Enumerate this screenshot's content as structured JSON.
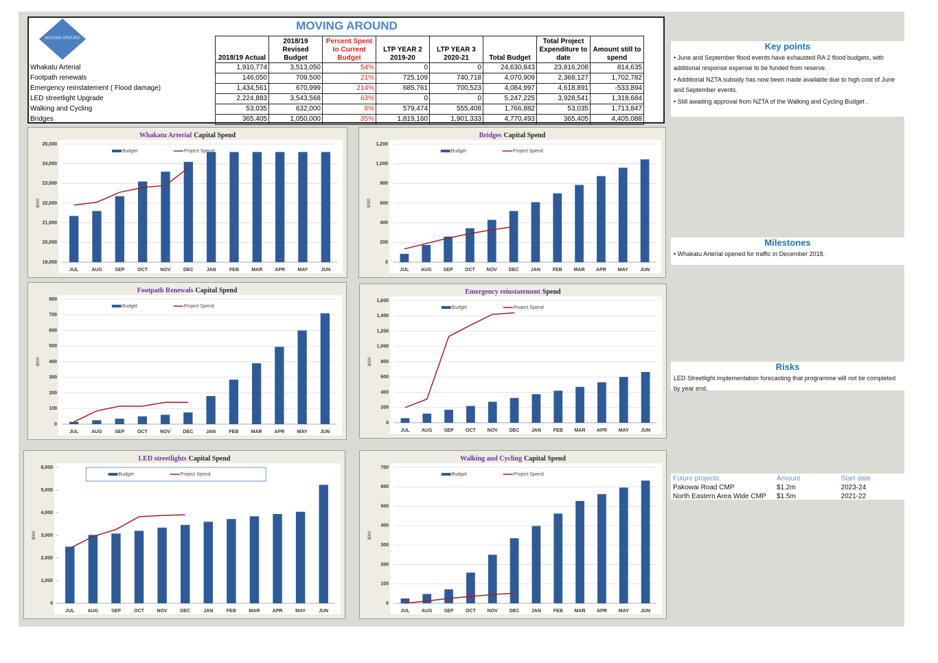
{
  "header": {
    "title": "MOVING AROUND",
    "logo_text": "MOVING AROUND"
  },
  "table": {
    "columns": [
      [
        "2018/19 Actual"
      ],
      [
        "2018/19",
        "Revised",
        "Budget"
      ],
      [
        "Percent Spent",
        "to Current",
        "Budget"
      ],
      [
        "LTP YEAR 2",
        "2019-20"
      ],
      [
        "LTP YEAR 3",
        "2020-21"
      ],
      [
        "Total Budget"
      ],
      [
        "Total Project",
        "Expenditure to",
        "date"
      ],
      [
        "Amount still to",
        "spend"
      ]
    ],
    "rows": [
      [
        "Whakatu Arterial",
        "1,910,774",
        "3,513,050",
        "54%",
        "0",
        "0",
        "24,630,843",
        "23,816,208",
        "814,635"
      ],
      [
        "Footpath renewals",
        "146,050",
        "709,500",
        "21%",
        "725,109",
        "740,718",
        "4,070,909",
        "2,368,127",
        "1,702,782"
      ],
      [
        "Emergency reinstatement ( Flood damage)",
        "1,434,561",
        "670,999",
        "214%",
        "685,761",
        "700,523",
        "4,084,997",
        "4,618,891",
        "-533,894"
      ],
      [
        "LED streetlight Upgrade",
        "2,224,883",
        "3,543,568",
        "63%",
        "0",
        "0",
        "5,247,225",
        "3,928,541",
        "1,318,684"
      ],
      [
        "Walking and Cycling",
        "53,035",
        "632,000",
        "8%",
        "579,474",
        "555,408",
        "1,766,882",
        "53,035",
        "1,713,847"
      ],
      [
        "Bridges",
        "365,405",
        "1,050,000",
        "35%",
        "1,819,160",
        "1,901,333",
        "4,770,493",
        "365,405",
        "4,405,088"
      ]
    ]
  },
  "key_points": {
    "title": "Key points",
    "items": [
      "• June and September flood events have exhausted RA 2 flood budgets, with additional response expense to be funded from reserve.",
      "• Additional NZTA subsidy has now been made available due to high cost of June and September events.",
      "• Still awaiting approval  from NZTA of the Walking and Cycling Budget ."
    ]
  },
  "milestones": {
    "title": "Milestones",
    "items": [
      "• Whakatu Arterial opened for traffic in December 2018."
    ]
  },
  "risks": {
    "title": "Risks",
    "items": [
      "LED Streetlight implementation forecasting that programme will not be completed by year end."
    ]
  },
  "future_projects": {
    "columns": [
      "Future projects:",
      "Amount",
      "Start date"
    ],
    "rows": [
      [
        "Pakowai Road CMP",
        "$1.2m",
        "2023-24"
      ],
      [
        "North Eastern Area Wide CMP",
        "$1.5m",
        "2021-22"
      ]
    ]
  },
  "chart_data": [
    {
      "type": "bar",
      "title_highlight": "Whakatu Arterial",
      "title": "Capital Spend",
      "ylabel": "$000",
      "categories": [
        "JUL",
        "AUG",
        "SEP",
        "OCT",
        "NOV",
        "DEC",
        "JAN",
        "FEB",
        "MAR",
        "APR",
        "MAY",
        "JUN"
      ],
      "series": [
        {
          "name": "Budget",
          "type": "bar",
          "color": "#2e5b97",
          "values": [
            21350,
            21600,
            22350,
            23100,
            23600,
            24100,
            24600,
            24600,
            24600,
            24600,
            24600,
            24600
          ]
        },
        {
          "name": "Project Spend",
          "type": "line",
          "color": "#a01c2c",
          "values": [
            21900,
            22050,
            22550,
            22800,
            22900,
            23800,
            null,
            null,
            null,
            null,
            null,
            null
          ]
        }
      ],
      "ylim": [
        19000,
        25000
      ],
      "yticks": [
        {
          "value": 19000,
          "label": "19,000"
        },
        {
          "value": 20000,
          "label": "20,000"
        },
        {
          "value": 21000,
          "label": "21,000"
        },
        {
          "value": 22000,
          "label": "22,000"
        },
        {
          "value": 23000,
          "label": "23,000"
        },
        {
          "value": 24000,
          "label": "24,000"
        },
        {
          "value": 25000,
          "label": "25,000"
        }
      ],
      "grid": true
    },
    {
      "type": "bar",
      "title_highlight": "Bridges",
      "title": "Capital Spend",
      "ylabel": "$000",
      "categories": [
        "JUL",
        "AUG",
        "SEP",
        "OCT",
        "NOV",
        "DEC",
        "JAN",
        "FEB",
        "MAR",
        "APR",
        "MAY",
        "JUN"
      ],
      "series": [
        {
          "name": "Budget",
          "type": "bar",
          "color": "#2e5b97",
          "values": [
            85,
            175,
            260,
            345,
            430,
            520,
            610,
            700,
            785,
            875,
            960,
            1045
          ]
        },
        {
          "name": "Project Spend",
          "type": "line",
          "color": "#a01c2c",
          "values": [
            135,
            190,
            245,
            290,
            330,
            360,
            null,
            null,
            null,
            null,
            null,
            null
          ]
        }
      ],
      "ylim": [
        0,
        1200
      ],
      "yticks": [
        0,
        200,
        400,
        600,
        800,
        {
          "value": 1000,
          "label": "1,000"
        },
        {
          "value": 1200,
          "label": "1,200"
        }
      ],
      "grid": true
    },
    {
      "type": "bar",
      "title_highlight": "Footpath Renewals",
      "title": "Capital Spend",
      "ylabel": "$000",
      "categories": [
        "JUL",
        "AUG",
        "SEP",
        "OCT",
        "NOV",
        "DEC",
        "JAN",
        "FEB",
        "MAR",
        "APR",
        "MAY",
        "JUN"
      ],
      "series": [
        {
          "name": "Budget",
          "type": "bar",
          "color": "#2e5b97",
          "values": [
            15,
            25,
            35,
            50,
            60,
            75,
            180,
            285,
            390,
            495,
            600,
            710
          ]
        },
        {
          "name": "Project Spend",
          "type": "line",
          "color": "#a01c2c",
          "values": [
            15,
            85,
            115,
            115,
            140,
            140,
            null,
            null,
            null,
            null,
            null,
            null
          ]
        }
      ],
      "ylim": [
        0,
        800
      ],
      "yticks": [
        0,
        100,
        200,
        300,
        400,
        500,
        600,
        700,
        800
      ],
      "grid": true
    },
    {
      "type": "bar",
      "title_highlight": "Emergency reinstatement",
      "title": "Spend",
      "ylabel": "$000",
      "categories": [
        "JUL",
        "AUG",
        "SEP",
        "OCT",
        "NOV",
        "DEC",
        "JAN",
        "FEB",
        "MAR",
        "APR",
        "MAY",
        "JUN"
      ],
      "series": [
        {
          "name": "Budget",
          "type": "bar",
          "color": "#2e5b97",
          "values": [
            60,
            120,
            170,
            220,
            275,
            325,
            375,
            420,
            470,
            530,
            600,
            665
          ]
        },
        {
          "name": "Project Spend",
          "type": "line",
          "color": "#a01c2c",
          "values": [
            200,
            310,
            1130,
            1280,
            1420,
            1440,
            null,
            null,
            null,
            null,
            null,
            null
          ]
        }
      ],
      "ylim": [
        0,
        1600
      ],
      "yticks": [
        0,
        200,
        400,
        600,
        800,
        {
          "value": 1000,
          "label": "1,000"
        },
        {
          "value": 1200,
          "label": "1,200"
        },
        {
          "value": 1400,
          "label": "1,400"
        },
        {
          "value": 1600,
          "label": "1,600"
        }
      ],
      "grid": true
    },
    {
      "type": "bar",
      "title_highlight": "LED streetlights",
      "title": "Capital Spend",
      "ylabel": "$000",
      "categories": [
        "JUL",
        "AUG",
        "SEP",
        "OCT",
        "NOV",
        "DEC",
        "JAN",
        "FEB",
        "MAR",
        "APR",
        "MAY",
        "JUN"
      ],
      "series": [
        {
          "name": "Budget",
          "type": "bar",
          "color": "#2e5b97",
          "values": [
            2500,
            3020,
            3080,
            3200,
            3340,
            3460,
            3600,
            3720,
            3840,
            3940,
            4040,
            5230
          ]
        },
        {
          "name": "Project Spend",
          "type": "line",
          "color": "#a01c2c",
          "values": [
            2430,
            2950,
            3260,
            3820,
            3880,
            3910,
            null,
            null,
            null,
            null,
            null,
            null
          ]
        }
      ],
      "ylim": [
        0,
        6000
      ],
      "yticks": [
        0,
        {
          "value": 1000,
          "label": "1,000"
        },
        {
          "value": 2000,
          "label": "2,000"
        },
        {
          "value": 3000,
          "label": "3,000"
        },
        {
          "value": 4000,
          "label": "4,000"
        },
        {
          "value": 5000,
          "label": "5,000"
        },
        {
          "value": 6000,
          "label": "6,000"
        }
      ],
      "grid": false
    },
    {
      "type": "bar",
      "title_highlight": "Walking and Cycling",
      "title": "Capital Spend",
      "ylabel": "$000",
      "categories": [
        "JUL",
        "AUG",
        "SEP",
        "OCT",
        "NOV",
        "DEC",
        "JAN",
        "FEB",
        "MAR",
        "APR",
        "MAY",
        "JUN"
      ],
      "series": [
        {
          "name": "Budget",
          "type": "bar",
          "color": "#2e5b97",
          "values": [
            25,
            48,
            72,
            158,
            250,
            335,
            398,
            462,
            527,
            562,
            596,
            632
          ]
        },
        {
          "name": "Project Spend",
          "type": "line",
          "color": "#a01c2c",
          "values": [
            0,
            12,
            25,
            35,
            45,
            52,
            null,
            null,
            null,
            null,
            null,
            null
          ]
        }
      ],
      "ylim": [
        0,
        700
      ],
      "yticks": [
        0,
        100,
        200,
        300,
        400,
        500,
        600,
        700
      ],
      "grid": true
    }
  ]
}
